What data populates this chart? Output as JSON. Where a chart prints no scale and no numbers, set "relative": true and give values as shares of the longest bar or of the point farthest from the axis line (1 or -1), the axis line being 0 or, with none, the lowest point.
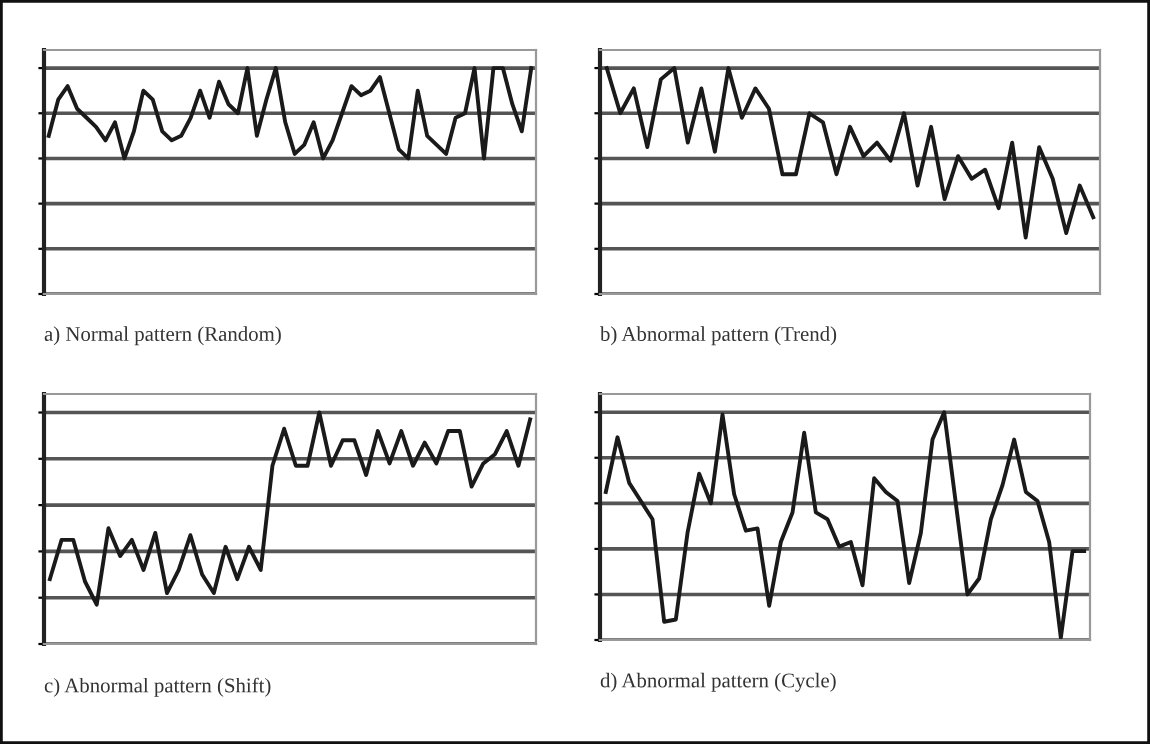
{
  "chart_data": [
    {
      "type": "line",
      "title": "a) Normal pattern (Random)",
      "relative": true,
      "grid": "y",
      "legend": false,
      "categories": [
        null,
        null,
        null,
        null,
        null,
        null,
        null,
        null,
        null,
        null,
        null,
        null,
        null,
        null,
        null,
        null,
        null,
        null,
        null,
        null,
        null,
        null,
        null,
        null,
        null,
        null,
        null,
        null,
        null,
        null,
        null,
        null,
        null,
        null,
        null,
        null,
        null,
        null,
        null,
        null,
        null,
        null,
        null,
        null,
        null,
        null,
        null,
        null,
        null,
        null,
        null,
        null
      ],
      "series": [
        {
          "color": "#1a1a1a",
          "values": [
            0.7,
            0.86,
            0.92,
            0.82,
            0.78,
            0.74,
            0.68,
            0.76,
            0.6,
            0.72,
            0.9,
            0.86,
            0.72,
            0.68,
            0.7,
            0.78,
            0.9,
            0.78,
            0.94,
            0.84,
            0.8,
            1.0,
            0.7,
            0.86,
            1.0,
            0.76,
            0.62,
            0.66,
            0.76,
            0.6,
            0.68,
            0.8,
            0.92,
            0.88,
            0.9,
            0.96,
            0.8,
            0.64,
            0.6,
            0.9,
            0.7,
            0.66,
            0.62,
            0.78,
            0.8,
            1.0,
            0.6,
            1.0,
            1.0,
            0.84,
            0.72,
            1.0
          ]
        }
      ]
    },
    {
      "type": "line",
      "title": "b) Abnormal pattern (Trend)",
      "relative": true,
      "grid": "y",
      "legend": false,
      "categories": [
        null,
        null,
        null,
        null,
        null,
        null,
        null,
        null,
        null,
        null,
        null,
        null,
        null,
        null,
        null,
        null,
        null,
        null,
        null,
        null,
        null,
        null,
        null,
        null,
        null,
        null,
        null,
        null,
        null,
        null,
        null,
        null,
        null,
        null,
        null,
        null,
        null
      ],
      "series": [
        {
          "color": "#1a1a1a",
          "values": [
            1.0,
            0.8,
            0.91,
            0.65,
            0.95,
            1.0,
            0.67,
            0.91,
            0.63,
            1.0,
            0.78,
            0.91,
            0.82,
            0.53,
            0.53,
            0.8,
            0.76,
            0.53,
            0.74,
            0.61,
            0.67,
            0.59,
            0.8,
            0.48,
            0.74,
            0.42,
            0.61,
            0.51,
            0.55,
            0.38,
            0.67,
            0.25,
            0.65,
            0.51,
            0.27,
            0.48,
            0.34
          ]
        }
      ]
    },
    {
      "type": "line",
      "title": "c) Abnormal pattern (Shift)",
      "relative": true,
      "grid": "y",
      "legend": false,
      "categories": [
        null,
        null,
        null,
        null,
        null,
        null,
        null,
        null,
        null,
        null,
        null,
        null,
        null,
        null,
        null,
        null,
        null,
        null,
        null,
        null,
        null,
        null,
        null,
        null,
        null,
        null,
        null,
        null,
        null,
        null,
        null,
        null,
        null,
        null,
        null,
        null,
        null,
        null,
        null,
        null,
        null,
        null
      ],
      "series": [
        {
          "color": "#1a1a1a",
          "values": [
            0.28,
            0.45,
            0.45,
            0.27,
            0.17,
            0.5,
            0.38,
            0.45,
            0.32,
            0.48,
            0.22,
            0.32,
            0.47,
            0.3,
            0.22,
            0.42,
            0.28,
            0.42,
            0.32,
            0.77,
            0.93,
            0.77,
            0.77,
            1.0,
            0.77,
            0.88,
            0.88,
            0.73,
            0.92,
            0.78,
            0.92,
            0.77,
            0.87,
            0.78,
            0.92,
            0.92,
            0.68,
            0.78,
            0.82,
            0.92,
            0.77,
            0.97
          ]
        }
      ]
    },
    {
      "type": "line",
      "title": "d) Abnormal pattern (Cycle)",
      "relative": true,
      "grid": "y",
      "legend": false,
      "categories": [
        null,
        null,
        null,
        null,
        null,
        null,
        null,
        null,
        null,
        null,
        null,
        null,
        null,
        null,
        null,
        null,
        null,
        null,
        null,
        null,
        null,
        null,
        null,
        null,
        null,
        null,
        null,
        null,
        null,
        null,
        null,
        null,
        null,
        null,
        null,
        null,
        null,
        null,
        null,
        null,
        null,
        null
      ],
      "series": [
        {
          "color": "#1a1a1a",
          "values": [
            0.65,
            0.89,
            0.69,
            0.61,
            0.53,
            0.08,
            0.09,
            0.47,
            0.73,
            0.6,
            0.99,
            0.64,
            0.48,
            0.49,
            0.15,
            0.43,
            0.56,
            0.91,
            0.56,
            0.53,
            0.41,
            0.43,
            0.24,
            0.71,
            0.65,
            0.61,
            0.25,
            0.47,
            0.88,
            1.0,
            0.6,
            0.2,
            0.27,
            0.53,
            0.68,
            0.88,
            0.65,
            0.61,
            0.43,
            0.01,
            0.39,
            0.39
          ]
        }
      ]
    }
  ]
}
